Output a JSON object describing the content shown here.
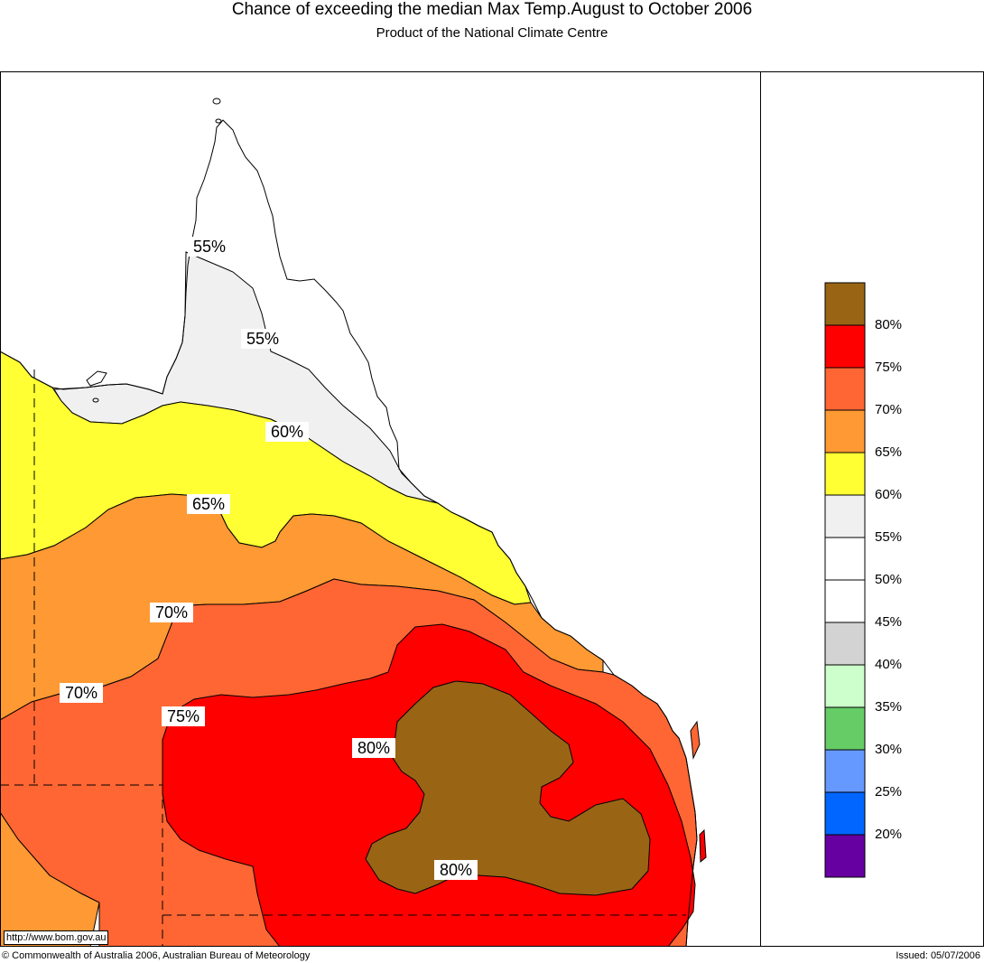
{
  "header": {
    "title": "Chance of exceeding the median Max Temp.August to October 2006",
    "subtitle": "Product of the National Climate Centre"
  },
  "map": {
    "contour_labels": [
      "55%",
      "55%",
      "60%",
      "65%",
      "70%",
      "70%",
      "75%",
      "80%",
      "80%"
    ],
    "zone_colors": {
      "above_80": "#996515",
      "75_80": "#ff0000",
      "70_75": "#ff6633",
      "65_70": "#ff9933",
      "60_65": "#ffff33",
      "55_60": "#f0f0f0",
      "50_55": "#ffffff"
    }
  },
  "legend": {
    "items": [
      {
        "label": "80%",
        "color": "#996515"
      },
      {
        "label": "75%",
        "color": "#ff0000"
      },
      {
        "label": "70%",
        "color": "#ff6633"
      },
      {
        "label": "65%",
        "color": "#ff9933"
      },
      {
        "label": "60%",
        "color": "#ffff33"
      },
      {
        "label": "55%",
        "color": "#f0f0f0"
      },
      {
        "label": "50%",
        "color": "#ffffff"
      },
      {
        "label": "45%",
        "color": "#ffffff"
      },
      {
        "label": "40%",
        "color": "#d3d3d3"
      },
      {
        "label": "35%",
        "color": "#ccffcc"
      },
      {
        "label": "30%",
        "color": "#66cc66"
      },
      {
        "label": "25%",
        "color": "#6699ff"
      },
      {
        "label": "20%",
        "color": "#0066ff"
      },
      {
        "label": "",
        "color": "#6600a0"
      }
    ]
  },
  "footer": {
    "url": "http://www.bom.gov.au",
    "copyright": "© Commonwealth of Australia 2006, Australian Bureau of Meteorology",
    "issued": "Issued: 05/07/2006"
  }
}
